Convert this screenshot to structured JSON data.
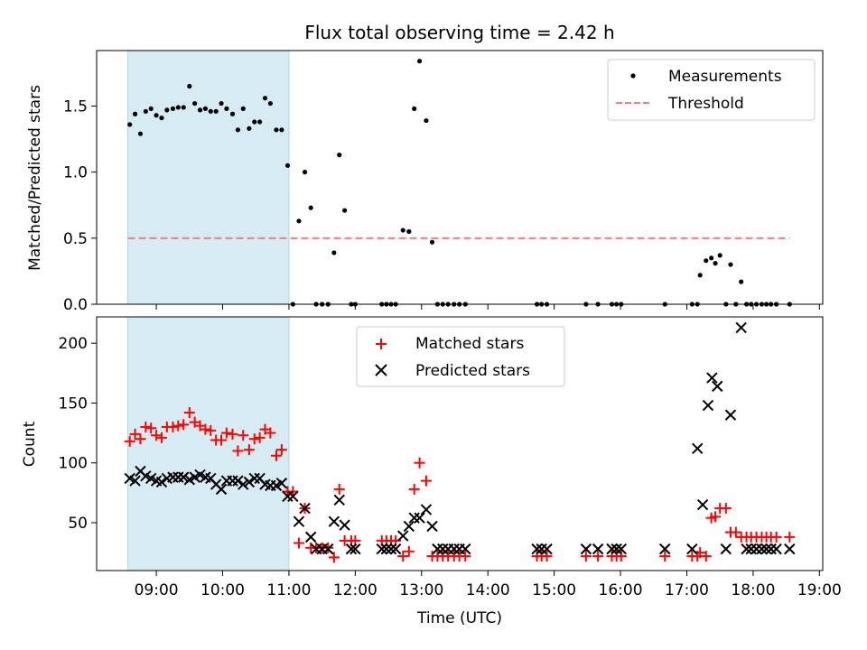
{
  "figure": {
    "title": "Flux total observing time = 2.42 h",
    "xlabel": "Time (UTC)",
    "x_tick_labels": [
      "09:00",
      "10:00",
      "11:00",
      "12:00",
      "13:00",
      "14:00",
      "15:00",
      "16:00",
      "17:00",
      "18:00",
      "19:00"
    ],
    "x_ticks_hours": [
      9,
      10,
      11,
      12,
      13,
      14,
      15,
      16,
      17,
      18,
      19
    ],
    "shaded_span_hours": [
      8.57,
      11.0
    ],
    "shade_color": "#add8e6"
  },
  "chart_data": [
    {
      "type": "scatter",
      "ylabel": "Matched/Predicted stars",
      "xlim_hours": [
        8.1,
        19.05
      ],
      "ylim": [
        0.0,
        1.92
      ],
      "y_tick_labels": [
        "0.0",
        "0.5",
        "1.0",
        "1.5"
      ],
      "y_ticks": [
        0.0,
        0.5,
        1.0,
        1.5
      ],
      "legend": {
        "position": "top-right",
        "entries": [
          "Measurements",
          "Threshold"
        ]
      },
      "threshold": {
        "name": "Threshold",
        "y": 0.5,
        "x_range_hours": [
          8.57,
          18.55
        ],
        "color": "#f08080",
        "style": "dashed"
      },
      "series": [
        {
          "name": "Measurements",
          "marker": "dot",
          "color": "#000000",
          "points": [
            [
              8.6,
              1.36
            ],
            [
              8.68,
              1.44
            ],
            [
              8.76,
              1.29
            ],
            [
              8.84,
              1.46
            ],
            [
              8.92,
              1.48
            ],
            [
              9.0,
              1.43
            ],
            [
              9.08,
              1.41
            ],
            [
              9.16,
              1.47
            ],
            [
              9.25,
              1.48
            ],
            [
              9.33,
              1.49
            ],
            [
              9.41,
              1.49
            ],
            [
              9.5,
              1.65
            ],
            [
              9.58,
              1.52
            ],
            [
              9.66,
              1.47
            ],
            [
              9.74,
              1.48
            ],
            [
              9.82,
              1.46
            ],
            [
              9.9,
              1.46
            ],
            [
              9.98,
              1.52
            ],
            [
              10.06,
              1.48
            ],
            [
              10.15,
              1.44
            ],
            [
              10.23,
              1.32
            ],
            [
              10.31,
              1.48
            ],
            [
              10.4,
              1.33
            ],
            [
              10.48,
              1.38
            ],
            [
              10.56,
              1.38
            ],
            [
              10.64,
              1.56
            ],
            [
              10.72,
              1.52
            ],
            [
              10.81,
              1.32
            ],
            [
              10.89,
              1.32
            ],
            [
              10.98,
              1.05
            ],
            [
              11.06,
              0.0
            ],
            [
              11.15,
              0.63
            ],
            [
              11.24,
              1.0
            ],
            [
              11.33,
              0.73
            ],
            [
              11.41,
              0.0
            ],
            [
              11.5,
              0.0
            ],
            [
              11.59,
              0.0
            ],
            [
              11.68,
              0.39
            ],
            [
              11.76,
              1.13
            ],
            [
              11.84,
              0.71
            ],
            [
              11.94,
              0.0
            ],
            [
              12.0,
              0.0
            ],
            [
              12.4,
              0.0
            ],
            [
              12.47,
              0.0
            ],
            [
              12.54,
              0.0
            ],
            [
              12.61,
              0.0
            ],
            [
              12.72,
              0.56
            ],
            [
              12.81,
              0.55
            ],
            [
              12.89,
              1.48
            ],
            [
              12.97,
              1.84
            ],
            [
              13.07,
              1.39
            ],
            [
              13.16,
              0.47
            ],
            [
              13.24,
              0.0
            ],
            [
              13.32,
              0.0
            ],
            [
              13.4,
              0.0
            ],
            [
              13.49,
              0.0
            ],
            [
              13.57,
              0.0
            ],
            [
              13.66,
              0.0
            ],
            [
              14.74,
              0.0
            ],
            [
              14.81,
              0.0
            ],
            [
              14.89,
              0.0
            ],
            [
              15.48,
              0.0
            ],
            [
              15.66,
              0.0
            ],
            [
              15.87,
              0.0
            ],
            [
              15.94,
              0.0
            ],
            [
              16.01,
              0.0
            ],
            [
              16.67,
              0.0
            ],
            [
              17.08,
              0.0
            ],
            [
              17.16,
              0.0
            ],
            [
              17.2,
              0.22
            ],
            [
              17.29,
              0.33
            ],
            [
              17.37,
              0.35
            ],
            [
              17.43,
              0.31
            ],
            [
              17.5,
              0.37
            ],
            [
              17.59,
              0.0
            ],
            [
              17.66,
              0.3
            ],
            [
              17.74,
              0.0
            ],
            [
              17.82,
              0.17
            ],
            [
              17.9,
              0.0
            ],
            [
              17.97,
              0.0
            ],
            [
              18.05,
              0.0
            ],
            [
              18.13,
              0.0
            ],
            [
              18.2,
              0.0
            ],
            [
              18.27,
              0.0
            ],
            [
              18.35,
              0.0
            ],
            [
              18.55,
              0.0
            ]
          ]
        }
      ]
    },
    {
      "type": "scatter",
      "ylabel": "Count",
      "xlim_hours": [
        8.1,
        19.05
      ],
      "ylim": [
        10,
        222
      ],
      "y_tick_labels": [
        "50",
        "100",
        "150",
        "200"
      ],
      "y_ticks": [
        50,
        100,
        150,
        200
      ],
      "legend": {
        "position": "top-center",
        "entries": [
          "Matched stars",
          "Predicted stars"
        ]
      },
      "series": [
        {
          "name": "Matched stars",
          "marker": "plus",
          "color": "#ff0000",
          "points": [
            [
              8.6,
              118
            ],
            [
              8.68,
              124
            ],
            [
              8.76,
              120
            ],
            [
              8.84,
              130
            ],
            [
              8.92,
              129
            ],
            [
              9.0,
              123
            ],
            [
              9.08,
              121
            ],
            [
              9.16,
              130
            ],
            [
              9.25,
              130
            ],
            [
              9.33,
              131
            ],
            [
              9.41,
              132
            ],
            [
              9.5,
              142
            ],
            [
              9.58,
              134
            ],
            [
              9.66,
              131
            ],
            [
              9.74,
              128
            ],
            [
              9.82,
              127
            ],
            [
              9.9,
              119
            ],
            [
              9.98,
              119
            ],
            [
              10.06,
              125
            ],
            [
              10.15,
              124
            ],
            [
              10.23,
              110
            ],
            [
              10.31,
              123
            ],
            [
              10.4,
              111
            ],
            [
              10.48,
              120
            ],
            [
              10.56,
              121
            ],
            [
              10.64,
              128
            ],
            [
              10.72,
              125
            ],
            [
              10.81,
              106
            ],
            [
              10.89,
              111
            ],
            [
              10.98,
              76
            ],
            [
              11.06,
              76
            ],
            [
              11.15,
              33
            ],
            [
              11.24,
              62
            ],
            [
              11.33,
              29
            ],
            [
              11.41,
              29
            ],
            [
              11.5,
              29
            ],
            [
              11.59,
              29
            ],
            [
              11.68,
              21
            ],
            [
              11.76,
              78
            ],
            [
              11.84,
              35
            ],
            [
              11.94,
              35
            ],
            [
              12.0,
              35
            ],
            [
              12.4,
              35
            ],
            [
              12.47,
              35
            ],
            [
              12.54,
              35
            ],
            [
              12.61,
              35
            ],
            [
              12.72,
              22
            ],
            [
              12.81,
              26
            ],
            [
              12.89,
              78
            ],
            [
              12.97,
              100
            ],
            [
              13.07,
              85
            ],
            [
              13.16,
              22
            ],
            [
              13.24,
              22
            ],
            [
              13.32,
              22
            ],
            [
              13.4,
              22
            ],
            [
              13.49,
              22
            ],
            [
              13.57,
              22
            ],
            [
              13.66,
              22
            ],
            [
              14.74,
              22
            ],
            [
              14.81,
              22
            ],
            [
              14.89,
              22
            ],
            [
              15.48,
              22
            ],
            [
              15.66,
              22
            ],
            [
              15.87,
              22
            ],
            [
              15.94,
              22
            ],
            [
              16.01,
              22
            ],
            [
              16.67,
              22
            ],
            [
              17.08,
              22
            ],
            [
              17.16,
              22
            ],
            [
              17.2,
              25
            ],
            [
              17.29,
              22
            ],
            [
              17.37,
              54
            ],
            [
              17.43,
              55
            ],
            [
              17.5,
              62
            ],
            [
              17.59,
              62
            ],
            [
              17.66,
              42
            ],
            [
              17.74,
              42
            ],
            [
              17.82,
              38
            ],
            [
              17.9,
              38
            ],
            [
              17.97,
              38
            ],
            [
              18.05,
              38
            ],
            [
              18.13,
              38
            ],
            [
              18.2,
              38
            ],
            [
              18.27,
              38
            ],
            [
              18.35,
              38
            ],
            [
              18.55,
              38
            ]
          ]
        },
        {
          "name": "Predicted stars",
          "marker": "x",
          "color": "#000000",
          "points": [
            [
              8.6,
              87
            ],
            [
              8.68,
              85
            ],
            [
              8.76,
              93
            ],
            [
              8.84,
              89
            ],
            [
              8.92,
              87
            ],
            [
              9.0,
              85
            ],
            [
              9.08,
              84
            ],
            [
              9.16,
              87
            ],
            [
              9.25,
              88
            ],
            [
              9.33,
              88
            ],
            [
              9.41,
              88
            ],
            [
              9.5,
              86
            ],
            [
              9.58,
              88
            ],
            [
              9.66,
              90
            ],
            [
              9.74,
              88
            ],
            [
              9.82,
              87
            ],
            [
              9.9,
              82
            ],
            [
              9.98,
              78
            ],
            [
              10.06,
              85
            ],
            [
              10.15,
              85
            ],
            [
              10.23,
              85
            ],
            [
              10.31,
              82
            ],
            [
              10.4,
              84
            ],
            [
              10.48,
              87
            ],
            [
              10.56,
              87
            ],
            [
              10.64,
              82
            ],
            [
              10.72,
              81
            ],
            [
              10.81,
              81
            ],
            [
              10.89,
              83
            ],
            [
              10.98,
              72
            ],
            [
              11.06,
              72
            ],
            [
              11.15,
              51
            ],
            [
              11.24,
              62
            ],
            [
              11.33,
              38
            ],
            [
              11.41,
              28
            ],
            [
              11.5,
              28
            ],
            [
              11.59,
              28
            ],
            [
              11.68,
              51
            ],
            [
              11.76,
              69
            ],
            [
              11.84,
              48
            ],
            [
              11.94,
              28
            ],
            [
              12.0,
              28
            ],
            [
              12.4,
              28
            ],
            [
              12.47,
              28
            ],
            [
              12.54,
              28
            ],
            [
              12.61,
              28
            ],
            [
              12.72,
              39
            ],
            [
              12.81,
              47
            ],
            [
              12.89,
              54
            ],
            [
              12.97,
              54
            ],
            [
              13.07,
              61
            ],
            [
              13.16,
              47
            ],
            [
              13.24,
              28
            ],
            [
              13.32,
              28
            ],
            [
              13.4,
              28
            ],
            [
              13.49,
              28
            ],
            [
              13.57,
              28
            ],
            [
              13.66,
              28
            ],
            [
              14.74,
              28
            ],
            [
              14.81,
              28
            ],
            [
              14.89,
              28
            ],
            [
              15.48,
              28
            ],
            [
              15.66,
              28
            ],
            [
              15.87,
              28
            ],
            [
              15.94,
              28
            ],
            [
              16.01,
              28
            ],
            [
              16.67,
              28
            ],
            [
              17.08,
              28
            ],
            [
              17.16,
              112
            ],
            [
              17.24,
              65
            ],
            [
              17.32,
              148
            ],
            [
              17.38,
              171
            ],
            [
              17.46,
              164
            ],
            [
              17.59,
              28
            ],
            [
              17.66,
              140
            ],
            [
              17.82,
              213
            ],
            [
              17.9,
              28
            ],
            [
              17.97,
              28
            ],
            [
              18.05,
              28
            ],
            [
              18.13,
              28
            ],
            [
              18.2,
              28
            ],
            [
              18.27,
              28
            ],
            [
              18.35,
              28
            ],
            [
              18.55,
              28
            ]
          ]
        }
      ]
    }
  ]
}
